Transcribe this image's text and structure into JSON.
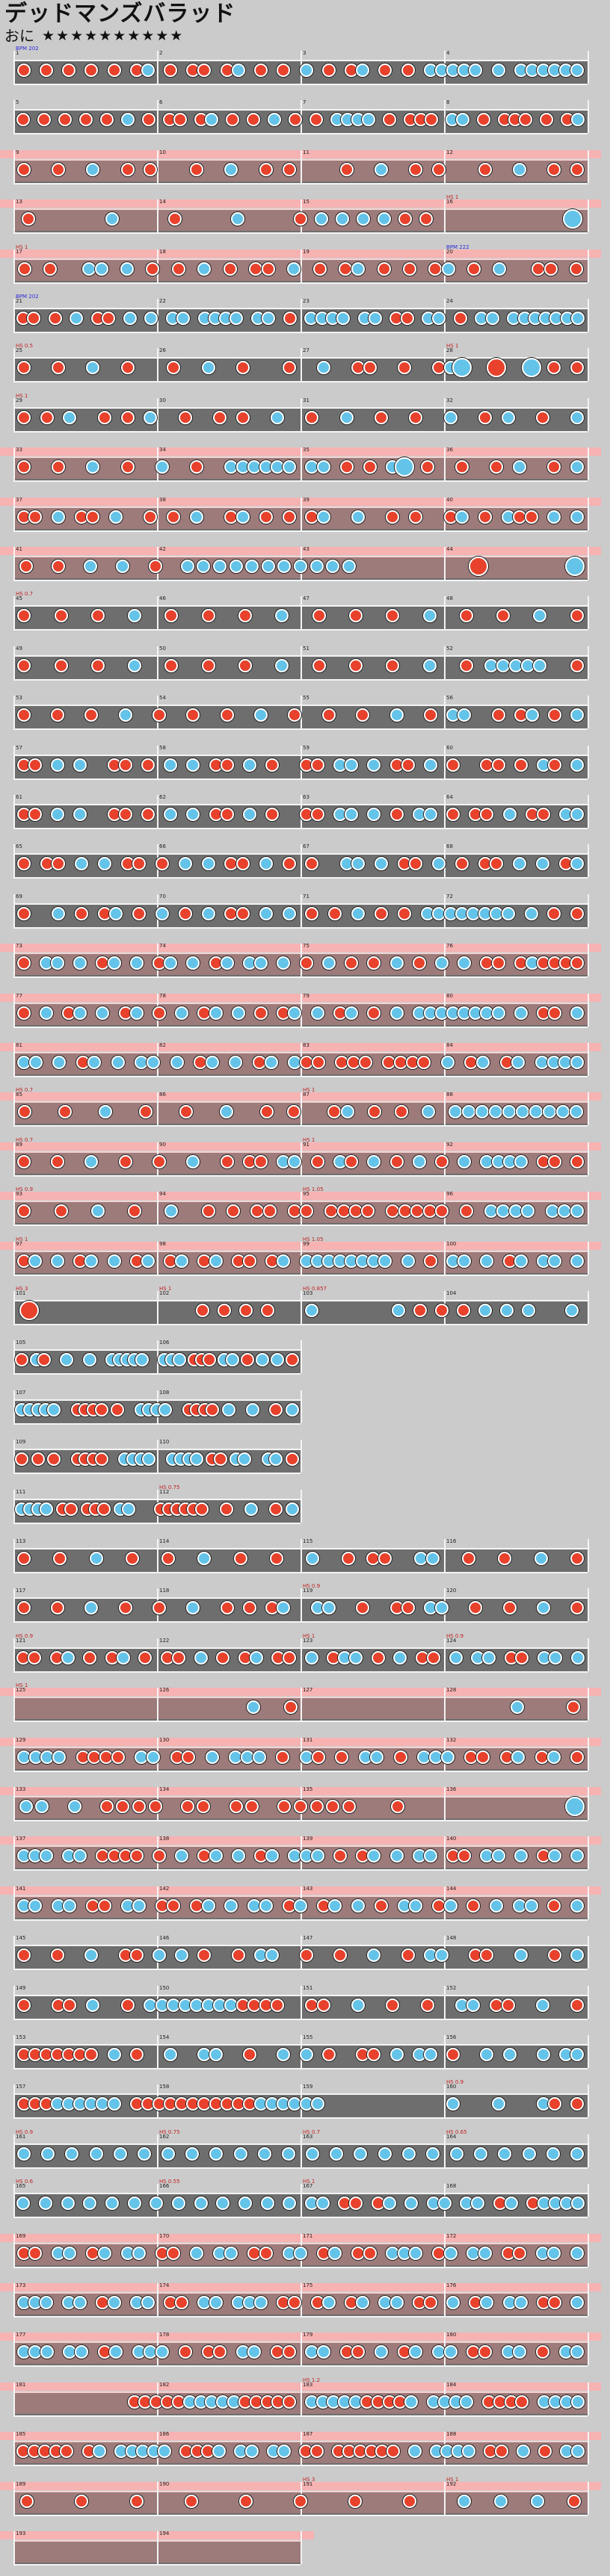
{
  "song": {
    "title": "デッドマンズバラッド",
    "difficulty": "おに",
    "stars": "★★★★★★★★★★"
  },
  "colors": {
    "don": "#e8412c",
    "ka": "#64c3e8",
    "lane": "#6e6e6e",
    "gogo": "#f7b2b2",
    "background": "#cbcbcb",
    "bpm_label": "#2a2ad8",
    "hs_label": "#c22020"
  },
  "chart_rows": [
    {
      "measures": [
        1,
        2,
        3,
        4
      ],
      "gogo": false,
      "labels": [
        {
          "m": 0,
          "text": "BPM 202",
          "kind": "bpm"
        }
      ],
      "notes": "d.d.d.d.d.dk.d.dd.dk.d.d.k.d.dk.d.d.kkkkk.k.kkkkkk"
    },
    {
      "measures": [
        5,
        6,
        7,
        8
      ],
      "gogo": false,
      "labels": [],
      "notes": "d.d.d.d.d.k.d.dd.dk.d.d.k.d.d.kkkk.d.ddd.kk.d.ddd.d.dk"
    },
    {
      "measures": [
        9,
        10,
        11,
        12
      ],
      "gogo": true,
      "labels": [],
      "notes": "d..d..k..d.d...d..k..d.d....d..k..d.d...d..k..d.d"
    },
    {
      "measures": [
        13,
        14,
        15,
        16
      ],
      "gogo": true,
      "labels": [
        {
          "m": 3,
          "text": "HS 1",
          "kind": "hs"
        }
      ],
      "notes": "d...k..d..k..dkkkkdd......K"
    },
    {
      "measures": [
        17,
        18,
        19,
        20
      ],
      "gogo": true,
      "labels": [
        {
          "m": 0,
          "text": "HS 1",
          "kind": "hs"
        },
        {
          "m": 3,
          "text": "BPM 222",
          "kind": "bpm"
        }
      ],
      "notes": "d.d..kk.k.d.d.k.d.dd.k.d.dk.d.d.dk.d.k..dd.d"
    },
    {
      "measures": [
        21,
        22,
        23,
        24
      ],
      "gogo": false,
      "labels": [
        {
          "m": 0,
          "text": "BPM 202",
          "kind": "bpm"
        }
      ],
      "notes": "dd.d.k.dd.k.k.kk.kkkk.kk.d.kkkk.kk.dd.kk.d.kk.kkkkkkk"
    },
    {
      "measures": [
        25,
        26,
        27,
        28
      ],
      "gogo": false,
      "labels": [
        {
          "m": 0,
          "text": "HS 0.5",
          "kind": "hs"
        },
        {
          "m": 3,
          "text": "HS 1",
          "kind": "hs"
        }
      ],
      "notes": "d..d..k..d...d..k..d...d..k..dd..d..dkK..D..K.d.d"
    },
    {
      "measures": [
        29,
        30,
        31,
        32
      ],
      "gogo": false,
      "labels": [
        {
          "m": 0,
          "text": "HS 1",
          "kind": "hs"
        }
      ],
      "notes": "d.d.k..d.d.k..d..d.d..k..d..k..d..d..k..d.k..d..k"
    },
    {
      "measures": [
        33,
        34,
        35,
        36
      ],
      "gogo": true,
      "labels": [],
      "notes": "d..d..k..d..k..d..kkkkkk.kk.d.d.kK.d..d..d.k..d.k"
    },
    {
      "measures": [
        37,
        38,
        39,
        40
      ],
      "gogo": true,
      "labels": [],
      "notes": "dd.k.dd.k..d.d.k..dk.d.d.dk..k..d.d..dk.d.kdd.k.k"
    },
    {
      "measures": [
        41,
        42,
        43,
        44
      ],
      "gogo": true,
      "labels": [],
      "notes": "d.d.k.k.d.kkkkkkkkkkk.......D.....K"
    },
    {
      "measures": [
        45,
        46,
        47,
        48
      ],
      "gogo": false,
      "labels": [
        {
          "m": 0,
          "text": "HS 0.7",
          "kind": "hs"
        }
      ],
      "notes": "d..d..d..k..d..d..d..k..d..d..d..k..d..d..k..d"
    },
    {
      "measures": [
        49,
        50,
        51,
        52
      ],
      "gogo": false,
      "labels": [],
      "notes": "d..d..d..k..d..d..d..k..d..d..d..k..d.kkkkk..d"
    },
    {
      "measures": [
        53,
        54,
        55,
        56
      ],
      "gogo": false,
      "labels": [],
      "notes": "d..d..d..k..d..d..d..k..d..d..d..k..d.kk..d.dk.d.k"
    },
    {
      "measures": [
        57,
        58,
        59,
        60
      ],
      "gogo": false,
      "labels": [],
      "notes": "dd.k.k..dd.d.k.k.dd.k.d..dd.kk.k.dd.k.d..dd.d.kd.k"
    },
    {
      "measures": [
        61,
        62,
        63,
        64
      ],
      "gogo": false,
      "labels": [],
      "notes": "dd.k.k..dd.d.k.k.dd.k.d..dd.kk.k.d.kk.d.dd.k.dd.kk"
    },
    {
      "measures": [
        65,
        66,
        67,
        68
      ],
      "gogo": false,
      "labels": [],
      "notes": "d.dd.k.k.dd.d.k.k.dd.k.d.d..kk.k.dd.k.d.dd.k.k.dk"
    },
    {
      "measures": [
        69,
        70,
        71,
        72
      ],
      "gogo": false,
      "labels": [],
      "notes": "d..k.d.dk.d.k.d.k.dd.k.k.d.d.k.d.d.kkkkkkkk.k.d.d"
    },
    {
      "measures": [
        73,
        74,
        75,
        76
      ],
      "gogo": true,
      "labels": [],
      "notes": "d.kk.k.dk.k.dk.k.dk.kk.k.d.k.d.d.k.d.k.k.dd.dkdddd"
    },
    {
      "measures": [
        77,
        78,
        79,
        80
      ],
      "gogo": true,
      "labels": [],
      "notes": "d.k.dk.k.dk.d.k.dk.k.d.dk.k.dk.d.k.kkkkkkkk.k.dd.k"
    },
    {
      "measures": [
        81,
        82,
        83,
        84
      ],
      "gogo": true,
      "labels": [],
      "notes": "kk.k.dk.k.kk.k.dk.k.dk.kdd.ddd.dddd.k.dk.dk.kkkk"
    },
    {
      "measures": [
        85,
        86,
        87,
        88
      ],
      "gogo": true,
      "labels": [
        {
          "m": 0,
          "text": "HS 0.7",
          "kind": "hs"
        },
        {
          "m": 2,
          "text": "HS 1",
          "kind": "hs"
        }
      ],
      "notes": "d..d..k..d..d..k..d.d..dk.d.d.k.kkkkkkkkkk"
    },
    {
      "measures": [
        89,
        90,
        91,
        92
      ],
      "gogo": true,
      "labels": [
        {
          "m": 0,
          "text": "HS 0.7",
          "kind": "hs"
        },
        {
          "m": 2,
          "text": "HS 1",
          "kind": "hs"
        }
      ],
      "notes": "d..d..k..d..d..k..d.dd.kk.d.kd.k.d.k.d.k.kkkk.dd.d"
    },
    {
      "measures": [
        93,
        94,
        95,
        96
      ],
      "gogo": true,
      "labels": [
        {
          "m": 0,
          "text": "HS 0.9",
          "kind": "hs"
        },
        {
          "m": 2,
          "text": "HS 1.05",
          "kind": "hs"
        }
      ],
      "notes": "d..d..k..d..k..d.d.dd.dd.dddd.ddddd.d.kkkk.kkk"
    },
    {
      "measures": [
        97,
        98,
        99,
        100
      ],
      "gogo": true,
      "labels": [
        {
          "m": 0,
          "text": "HS 1",
          "kind": "hs"
        },
        {
          "m": 2,
          "text": "HS 1.05",
          "kind": "hs"
        }
      ],
      "notes": "dk.k.dk.k.dk.dk.dk.dd.dk.kkkkkkkk.k.d.kk.k.dk.kk.k"
    },
    {
      "measures": [
        101,
        102,
        103,
        104
      ],
      "gogo": false,
      "labels": [
        {
          "m": 0,
          "text": "HS 3",
          "kind": "hs"
        },
        {
          "m": 1,
          "text": "HS 1",
          "kind": "hs"
        },
        {
          "m": 2,
          "text": "HS 0.857",
          "kind": "hs"
        }
      ],
      "notes": "D.......dddd.k...kdddkkk.k"
    },
    {
      "measures": [
        105,
        106
      ],
      "gogo": false,
      "labels": [],
      "notes": "d.kd..k..k..kkkkk..kkk.ddd.kk.d.k.k.d"
    },
    {
      "measures": [
        107,
        108
      ],
      "gogo": false,
      "labels": [],
      "notes": "kkkkk..dddd.d..kkkk..dddd.k..k..d.k"
    },
    {
      "measures": [
        109,
        110
      ],
      "gogo": false,
      "labels": [],
      "notes": "d.d.d..dddd..kkkk..kkkk.dd.kk..kk.d"
    },
    {
      "measures": [
        111,
        112
      ],
      "gogo": false,
      "labels": [
        {
          "m": 1,
          "text": "HS 0.75",
          "kind": "hs"
        }
      ],
      "notes": "kkkk.dd.ddd.kk...dddddd..d..k..d.k"
    },
    {
      "measures": [
        113,
        114,
        115,
        116
      ],
      "gogo": false,
      "labels": [],
      "notes": "d..d..k..d..d..k..d..d..k..d.dd..kk..d..d..k..d"
    },
    {
      "measures": [
        117,
        118,
        119,
        120
      ],
      "gogo": false,
      "labels": [
        {
          "m": 2,
          "text": "HS 0.9",
          "kind": "hs"
        }
      ],
      "notes": "d..d..k..d..d..k..d.d.dk..kk..d..dd.kk..d..d..k..d"
    },
    {
      "measures": [
        121,
        122,
        123,
        124
      ],
      "gogo": false,
      "labels": [
        {
          "m": 0,
          "text": "HS 0.9",
          "kind": "hs"
        },
        {
          "m": 2,
          "text": "HS 1",
          "kind": "hs"
        },
        {
          "m": 3,
          "text": "HS 0.9",
          "kind": "hs"
        }
      ],
      "notes": "dd.dk.d.dk.d.dd.k.d.dk.dd.k.dkk.d.k.dd.k.kk.dd.kk.k"
    },
    {
      "measures": [
        125,
        126,
        127,
        128
      ],
      "gogo": true,
      "labels": [
        {
          "m": 0,
          "text": "HS 1",
          "kind": "hs"
        }
      ],
      "notes": "............k.d...........k..d"
    },
    {
      "measures": [
        129,
        130,
        131,
        132
      ],
      "gogo": true,
      "labels": [],
      "notes": "kkkk.dddd.kk.dd.k.kkk.d.kd.d.kk.d.kkk.dd.dk.dk.d"
    },
    {
      "measures": [
        133,
        134,
        135,
        136
      ],
      "gogo": true,
      "labels": [],
      "notes": "kk.k.dddd.dd.dd.ddddd..d..........K"
    },
    {
      "measures": [
        137,
        138,
        139,
        140
      ],
      "gogo": true,
      "labels": [],
      "notes": "kkk.kk.dddd.d.k.dk.k.dk.kkk.d.dk.k.kk.dd.kk.k.dk.k"
    },
    {
      "measures": [
        141,
        142,
        143,
        144
      ],
      "gogo": true,
      "labels": [],
      "notes": "kk.kk.dd.kk.dd.dk.k.kk.dk.dk.k.d.kk.dk.d.k.kk.d.k"
    },
    {
      "measures": [
        145,
        146,
        147,
        148
      ],
      "gogo": false,
      "labels": [],
      "notes": "d..d..k..dd.k.k.d..d.kk..d..d..k..d.kk..dd..k..d.k"
    },
    {
      "measures": [
        149,
        150,
        151,
        152
      ],
      "gogo": false,
      "labels": [],
      "notes": "d..dd.k..d.kkkkkkkkdddd..dd..k..d..d..kk.dd..k..d"
    },
    {
      "measures": [
        153,
        154,
        155,
        156
      ],
      "gogo": false,
      "labels": [],
      "notes": "ddddddd.k.d..k..kk..d..k.k.d..dd.k.kk.d..k.k..k.kk"
    },
    {
      "measures": [
        157,
        158,
        159,
        160
      ],
      "gogo": false,
      "labels": [
        {
          "m": 3,
          "text": "HS 0.9",
          "kind": "hs"
        }
      ],
      "notes": "dddkkkkkk.dddddddddddkkkkkk...........k...k...kd.d"
    },
    {
      "measures": [
        161,
        162,
        163,
        164
      ],
      "gogo": false,
      "labels": [
        {
          "m": 0,
          "text": "HS 0.9",
          "kind": "hs"
        },
        {
          "m": 1,
          "text": "HS 0.75",
          "kind": "hs"
        },
        {
          "m": 2,
          "text": "HS 0.7",
          "kind": "hs"
        },
        {
          "m": 3,
          "text": "HS 0.65",
          "kind": "hs"
        }
      ],
      "notes": "k.k.k.k.k.k.k.k.k.k.k.k.k.k.k.k.k.k.k.k.k.k.k.k"
    },
    {
      "measures": [
        165,
        166,
        167,
        168
      ],
      "gogo": false,
      "labels": [
        {
          "m": 0,
          "text": "HS 0.6",
          "kind": "hs"
        },
        {
          "m": 1,
          "text": "HS 0.55",
          "kind": "hs"
        },
        {
          "m": 2,
          "text": "HS 1",
          "kind": "hs"
        }
      ],
      "notes": "k.k.k.k.k.k.k.k.k.k.k.k.k.kk.dd.dk.k.kk.kk.dk.dkkkk"
    },
    {
      "measures": [
        169,
        170,
        171,
        172
      ],
      "gogo": true,
      "labels": [],
      "notes": "dd.kk.dk.kk.dd.k.kk.dd.kk.dk.dd.kkk.dk.kk.dd.kk.k"
    },
    {
      "measures": [
        173,
        174,
        175,
        176
      ],
      "gogo": true,
      "labels": [],
      "notes": "kkk.kk.dk.kk.dd.kk.kkk.dd.dk.dk.kk.dd.k.dk.kk.dd.k"
    },
    {
      "measures": [
        177,
        178,
        179,
        180
      ],
      "gogo": true,
      "labels": [],
      "notes": "kkk.kk.dk.kkk.d.dd.kk.dd.kk.dd.k.dk.kk.dd.kk.d.kk"
    },
    {
      "measures": [
        181,
        182,
        183,
        184
      ],
      "gogo": true,
      "labels": [
        {
          "m": 2,
          "text": "HS 1.2",
          "kind": "hs"
        }
      ],
      "notes": "..........dddddkkkkkddddd.kkkkkddddk.kkkk.dddd.kkkk"
    },
    {
      "measures": [
        185,
        186,
        187,
        188
      ],
      "gogo": true,
      "labels": [],
      "notes": "ddddd.dk.kkkkk.dddk.kk.kk.dd.dddddd.k.kkkk.dd.k.d.kk"
    },
    {
      "measures": [
        189,
        190,
        191,
        192
      ],
      "gogo": true,
      "labels": [
        {
          "m": 2,
          "text": "HS 3",
          "kind": "hs"
        },
        {
          "m": 3,
          "text": "HS 1",
          "kind": "hs"
        }
      ],
      "notes": "d..d..d..d..d..d..d..d..k.k.k.d"
    },
    {
      "measures": [
        193,
        194
      ],
      "gogo": true,
      "labels": [],
      "notes": ""
    }
  ]
}
